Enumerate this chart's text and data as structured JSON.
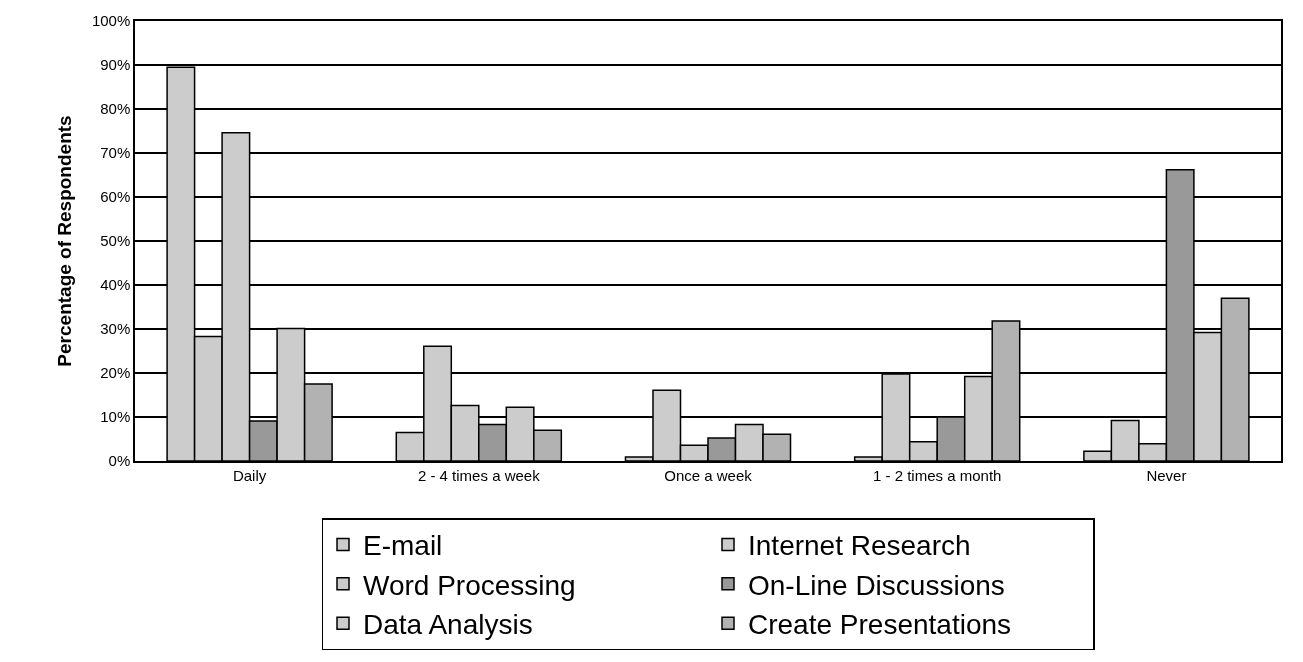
{
  "chart_data": {
    "type": "bar",
    "ylabel": "Percentage of Respondents",
    "categories": [
      "Daily",
      "2 - 4 times a week",
      "Once a week",
      "1 - 2 times a month",
      "Never"
    ],
    "series": [
      {
        "name": "E-mail",
        "color": "#cccccc",
        "values": [
          89.5,
          6.5,
          0.9,
          0.9,
          2.2
        ]
      },
      {
        "name": "Internet Research",
        "color": "#cccccc",
        "values": [
          28.3,
          26.1,
          16.1,
          19.8,
          9.2
        ]
      },
      {
        "name": "Word Processing",
        "color": "#cccccc",
        "values": [
          74.6,
          12.6,
          3.6,
          4.4,
          3.9
        ]
      },
      {
        "name": "On-Line Discussions",
        "color": "#999999",
        "values": [
          9.1,
          8.3,
          5.2,
          10.0,
          66.2
        ]
      },
      {
        "name": "Data Analysis",
        "color": "#cccccc",
        "values": [
          30.1,
          12.2,
          8.3,
          19.2,
          29.2
        ]
      },
      {
        "name": "Create Presentations",
        "color": "#b2b2b2",
        "values": [
          17.5,
          7.0,
          6.1,
          31.8,
          37.0
        ]
      }
    ],
    "ylim": [
      0,
      100
    ],
    "yticks": [
      {
        "value": 0,
        "label": "0%"
      },
      {
        "value": 10,
        "label": "10%"
      },
      {
        "value": 20,
        "label": "20%"
      },
      {
        "value": 30,
        "label": "30%"
      },
      {
        "value": 40,
        "label": "40%"
      },
      {
        "value": 50,
        "label": "50%"
      },
      {
        "value": 60,
        "label": "60%"
      },
      {
        "value": 70,
        "label": "70%"
      },
      {
        "value": 80,
        "label": "80%"
      },
      {
        "value": 90,
        "label": "90%"
      },
      {
        "value": 100,
        "label": "100%"
      }
    ],
    "grid": "y",
    "legend": "bottom"
  }
}
